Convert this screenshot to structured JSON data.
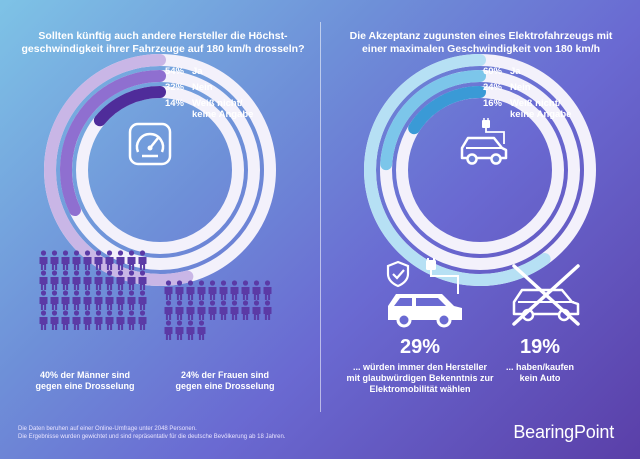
{
  "left": {
    "question": "Sollten künftig auch andere Hersteller die Höchst-\ngeschwindigkeit ihrer Fahrzeuge auf 180 km/h drosseln?",
    "legend": [
      {
        "pct": "54%",
        "label": "Ja"
      },
      {
        "pct": "32%",
        "label": "Nein"
      },
      {
        "pct": "14%",
        "label": "Weiß nicht/\nkeine Angabe"
      }
    ],
    "ring_values": [
      54,
      32,
      14
    ],
    "ring_colors": [
      "#c9b6e6",
      "#8f6fd0",
      "#4f2c9a"
    ],
    "icon": "speedometer-icon",
    "men_caption": "40% der Männer sind\ngegen eine Drosselung",
    "women_caption": "24% der Frauen sind\ngegen eine Drosselung",
    "men_share": 40,
    "women_share": 24
  },
  "right": {
    "question": "Die Akzeptanz zugunsten eines Elektrofahrzeugs mit\neiner maximalen Geschwindigkeit von 180 km/h",
    "legend": [
      {
        "pct": "60%",
        "label": "Ja"
      },
      {
        "pct": "24%",
        "label": "Nein"
      },
      {
        "pct": "16%",
        "label": "Weiß nicht/\nkeine Angabe"
      }
    ],
    "ring_values": [
      60,
      24,
      16
    ],
    "ring_colors": [
      "#b6e0f4",
      "#7cc6ea",
      "#3a9ad6"
    ],
    "icon": "electric-car-icon",
    "stat1": {
      "value": "29%",
      "caption": "... würden immer den Hersteller\nmit glaubwürdigen Bekenntnis zur\nElektromobilität wählen",
      "icon": "trusted-ev-icon"
    },
    "stat2": {
      "value": "19%",
      "caption": "... haben/kaufen\nkein Auto",
      "icon": "crossed-car-icon"
    }
  },
  "footnote": {
    "line1": "Die Daten beruhen auf einer Online-Umfrage unter 2048 Personen.",
    "line2": "Die Ergebnisse wurden gewichtet und sind repräsentativ für die deutsche Bevölkerung ab 18 Jahren."
  },
  "brand": "BearingPoint"
}
